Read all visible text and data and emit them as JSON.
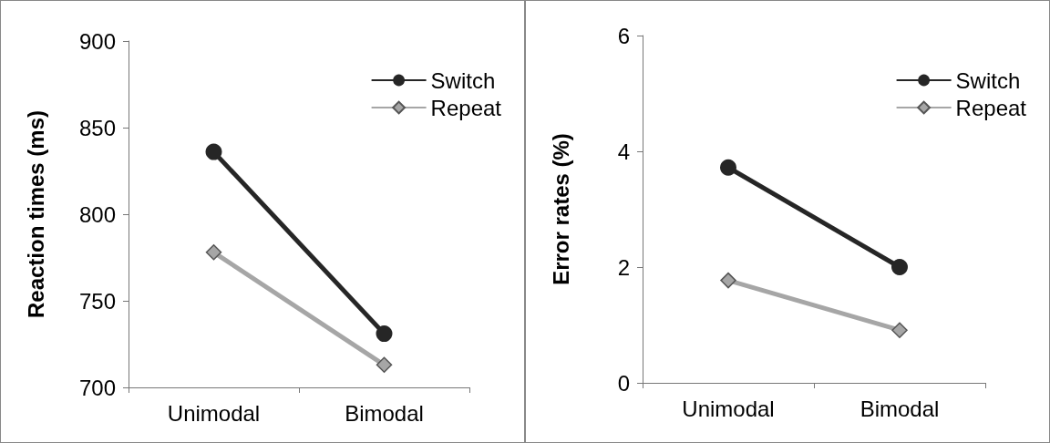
{
  "chart_data": [
    {
      "type": "line",
      "ylabel": "Reaction times (ms)",
      "categories": [
        "Unimodal",
        "Bimodal"
      ],
      "ylim": [
        700,
        900
      ],
      "yticks": [
        700,
        750,
        800,
        850,
        900
      ],
      "grid": false,
      "legend": "top right",
      "series": [
        {
          "name": "Switch",
          "color": "#262626",
          "marker": "circle",
          "values": [
            836,
            731
          ]
        },
        {
          "name": "Repeat",
          "color": "#a6a6a6",
          "marker": "diamond",
          "values": [
            778,
            713
          ]
        }
      ]
    },
    {
      "type": "line",
      "ylabel": "Error rates (%)",
      "categories": [
        "Unimodal",
        "Bimodal"
      ],
      "ylim": [
        0,
        6
      ],
      "yticks": [
        0,
        2,
        4,
        6
      ],
      "grid": false,
      "legend": "top right",
      "series": [
        {
          "name": "Switch",
          "color": "#262626",
          "marker": "circle",
          "values": [
            3.72,
            2.0
          ]
        },
        {
          "name": "Repeat",
          "color": "#a6a6a6",
          "marker": "diamond",
          "values": [
            1.77,
            0.91
          ]
        }
      ]
    }
  ]
}
